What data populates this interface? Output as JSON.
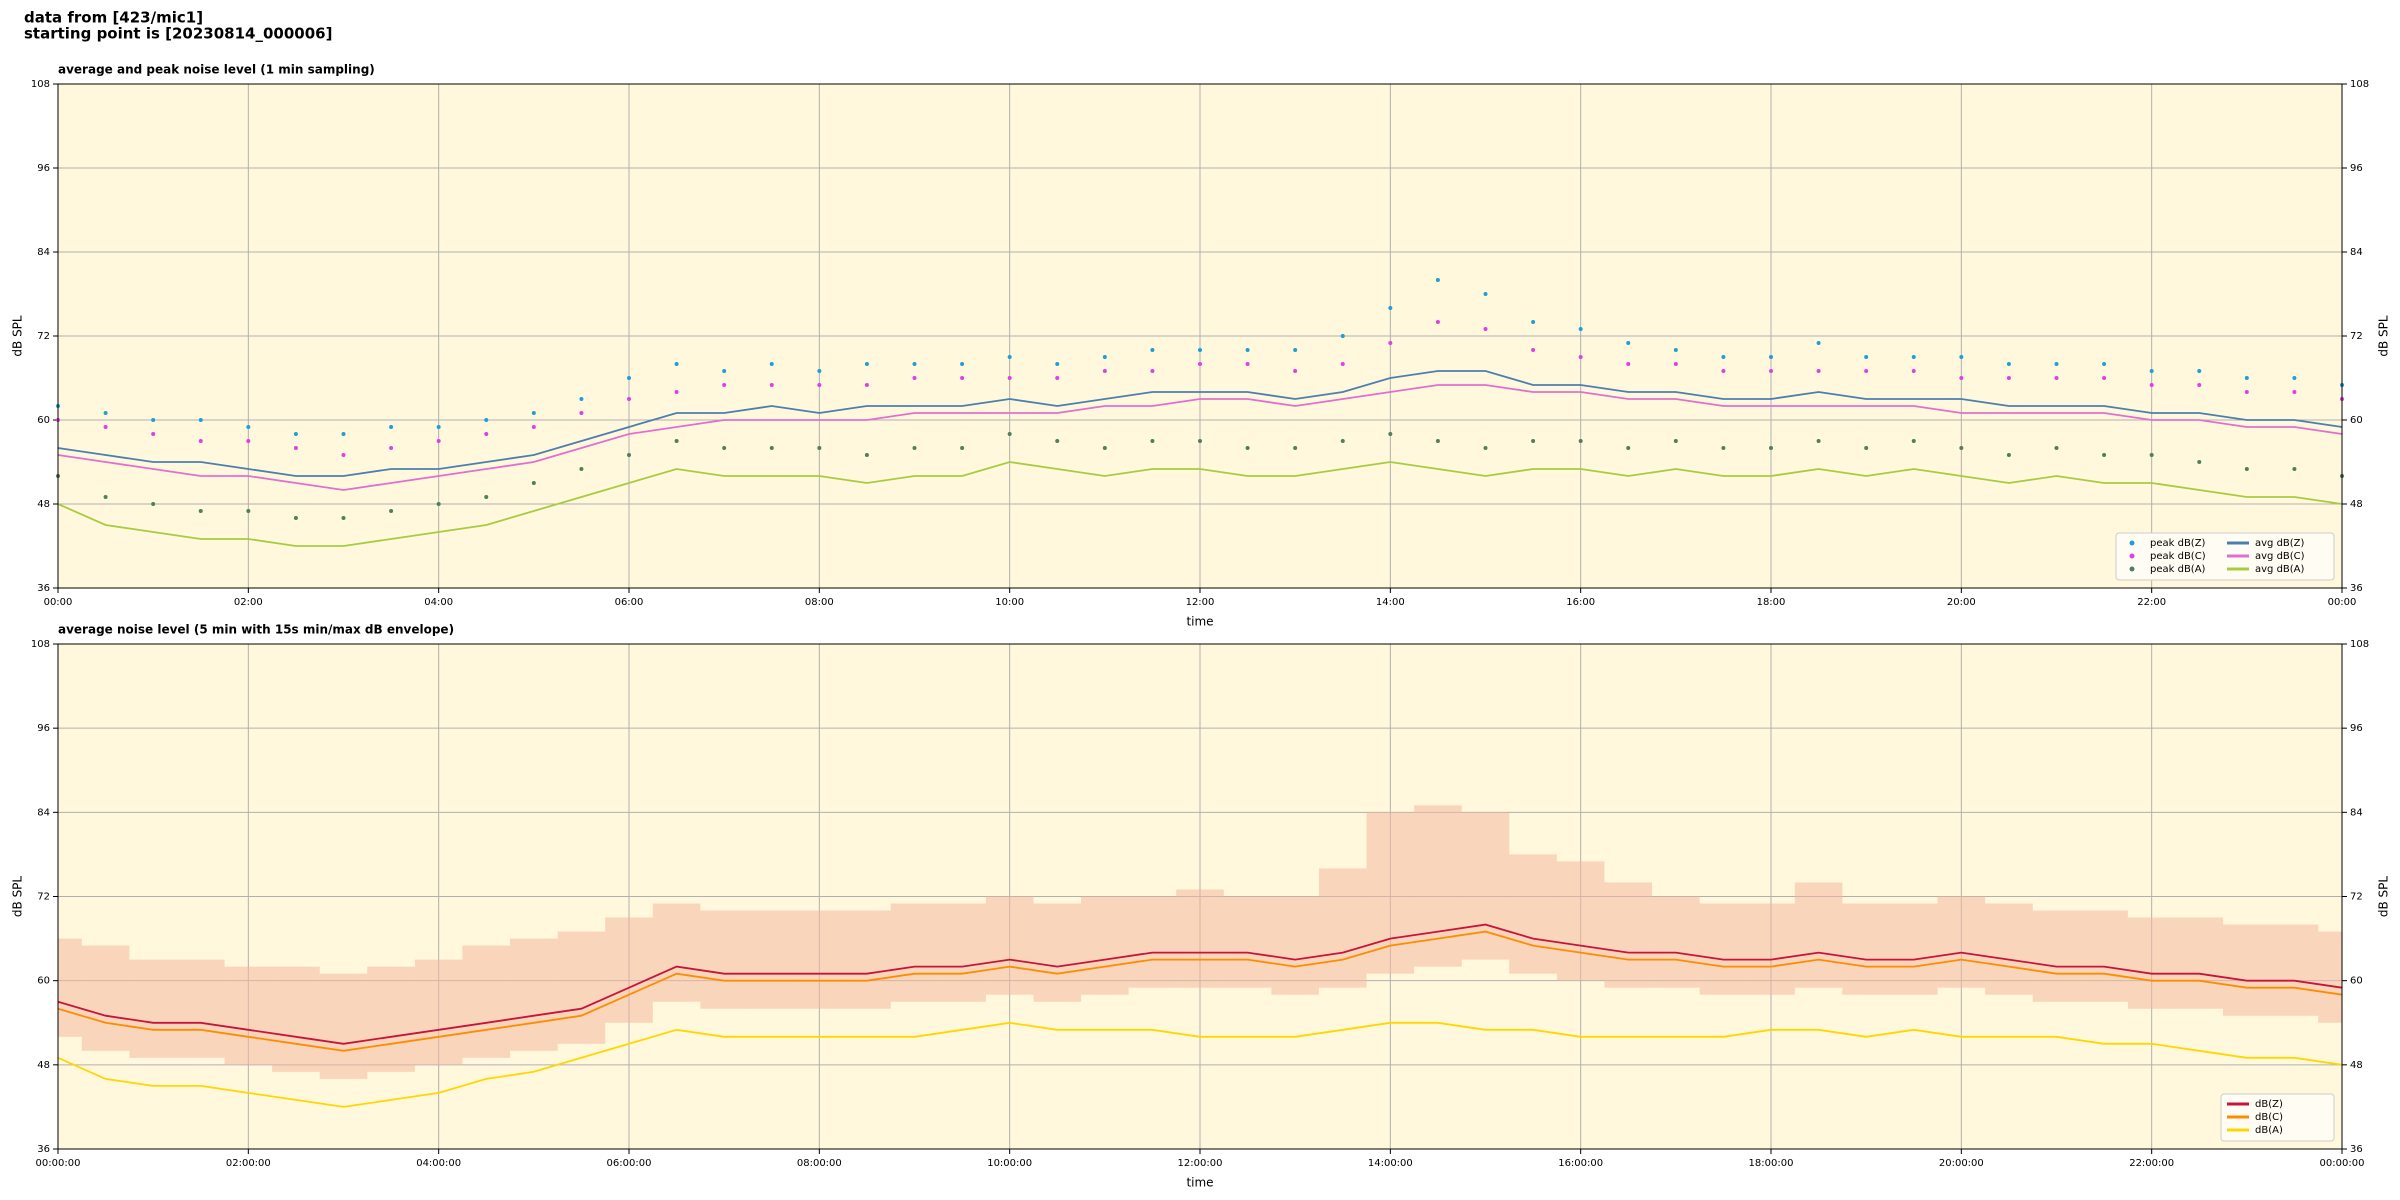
{
  "header": {
    "lines": [
      "data from [423/mic1]",
      "starting point is [20230814_000006]"
    ]
  },
  "chart_data": [
    {
      "type": "line",
      "title": "average and peak noise level (1 min sampling)",
      "xlabel": "time",
      "ylabel": "dB SPL",
      "x": [
        0,
        0.5,
        1,
        1.5,
        2,
        2.5,
        3,
        3.5,
        4,
        4.5,
        5,
        5.5,
        6,
        6.5,
        7,
        7.5,
        8,
        8.5,
        9,
        9.5,
        10,
        10.5,
        11,
        11.5,
        12,
        12.5,
        13,
        13.5,
        14,
        14.5,
        15,
        15.5,
        16,
        16.5,
        17,
        17.5,
        18,
        18.5,
        19,
        19.5,
        20,
        20.5,
        21,
        21.5,
        22,
        22.5,
        23,
        23.5,
        24
      ],
      "xlim": [
        0,
        24
      ],
      "ylim": [
        36,
        108
      ],
      "yticks": [
        36,
        48,
        60,
        72,
        84,
        96,
        108
      ],
      "xticks": [
        {
          "value": 0,
          "label": "00:00"
        },
        {
          "value": 2,
          "label": "02:00"
        },
        {
          "value": 4,
          "label": "04:00"
        },
        {
          "value": 6,
          "label": "06:00"
        },
        {
          "value": 8,
          "label": "08:00"
        },
        {
          "value": 10,
          "label": "10:00"
        },
        {
          "value": 12,
          "label": "12:00"
        },
        {
          "value": 14,
          "label": "14:00"
        },
        {
          "value": 16,
          "label": "16:00"
        },
        {
          "value": 18,
          "label": "18:00"
        },
        {
          "value": 20,
          "label": "20:00"
        },
        {
          "value": 22,
          "label": "22:00"
        },
        {
          "value": 24,
          "label": "00:00"
        }
      ],
      "grid": true,
      "legend": "lower right",
      "legend_columns": 2,
      "series": [
        {
          "name": "peak dB(Z)",
          "style": "dots",
          "color": "#1f9ed8",
          "values": [
            62,
            61,
            60,
            60,
            59,
            58,
            58,
            59,
            59,
            60,
            61,
            63,
            66,
            68,
            67,
            68,
            67,
            68,
            68,
            68,
            69,
            68,
            69,
            70,
            70,
            70,
            70,
            72,
            76,
            80,
            78,
            74,
            73,
            71,
            70,
            69,
            69,
            71,
            69,
            69,
            69,
            68,
            68,
            68,
            67,
            67,
            66,
            66,
            65
          ]
        },
        {
          "name": "peak dB(C)",
          "style": "dots",
          "color": "#e040e0",
          "values": [
            60,
            59,
            58,
            57,
            57,
            56,
            55,
            56,
            57,
            58,
            59,
            61,
            63,
            64,
            65,
            65,
            65,
            65,
            66,
            66,
            66,
            66,
            67,
            67,
            68,
            68,
            67,
            68,
            71,
            74,
            73,
            70,
            69,
            68,
            68,
            67,
            67,
            67,
            67,
            67,
            66,
            66,
            66,
            66,
            65,
            65,
            64,
            64,
            63
          ]
        },
        {
          "name": "peak dB(A)",
          "style": "dots",
          "color": "#4f7f5f",
          "values": [
            52,
            49,
            48,
            47,
            47,
            46,
            46,
            47,
            48,
            49,
            51,
            53,
            55,
            57,
            56,
            56,
            56,
            55,
            56,
            56,
            58,
            57,
            56,
            57,
            57,
            56,
            56,
            57,
            58,
            57,
            56,
            57,
            57,
            56,
            57,
            56,
            56,
            57,
            56,
            57,
            56,
            55,
            56,
            55,
            55,
            54,
            53,
            53,
            52
          ]
        },
        {
          "name": "avg dB(Z)",
          "style": "line",
          "color": "#4a7fb0",
          "values": [
            56,
            55,
            54,
            54,
            53,
            52,
            52,
            53,
            53,
            54,
            55,
            57,
            59,
            61,
            61,
            62,
            61,
            62,
            62,
            62,
            63,
            62,
            63,
            64,
            64,
            64,
            63,
            64,
            66,
            67,
            67,
            65,
            65,
            64,
            64,
            63,
            63,
            64,
            63,
            63,
            63,
            62,
            62,
            62,
            61,
            61,
            60,
            60,
            59
          ]
        },
        {
          "name": "avg dB(C)",
          "style": "line",
          "color": "#e070d0",
          "values": [
            55,
            54,
            53,
            52,
            52,
            51,
            50,
            51,
            52,
            53,
            54,
            56,
            58,
            59,
            60,
            60,
            60,
            60,
            61,
            61,
            61,
            61,
            62,
            62,
            63,
            63,
            62,
            63,
            64,
            65,
            65,
            64,
            64,
            63,
            63,
            62,
            62,
            62,
            62,
            62,
            61,
            61,
            61,
            61,
            60,
            60,
            59,
            59,
            58
          ]
        },
        {
          "name": "avg dB(A)",
          "style": "line",
          "color": "#a8cc40",
          "values": [
            48,
            45,
            44,
            43,
            43,
            42,
            42,
            43,
            44,
            45,
            47,
            49,
            51,
            53,
            52,
            52,
            52,
            51,
            52,
            52,
            54,
            53,
            52,
            53,
            53,
            52,
            52,
            53,
            54,
            53,
            52,
            53,
            53,
            52,
            53,
            52,
            52,
            53,
            52,
            53,
            52,
            51,
            52,
            51,
            51,
            50,
            49,
            49,
            48
          ]
        }
      ]
    },
    {
      "type": "line",
      "title": "average noise level (5 min with 15s min/max dB envelope)",
      "xlabel": "time",
      "ylabel": "dB SPL",
      "x": [
        0,
        0.5,
        1,
        1.5,
        2,
        2.5,
        3,
        3.5,
        4,
        4.5,
        5,
        5.5,
        6,
        6.5,
        7,
        7.5,
        8,
        8.5,
        9,
        9.5,
        10,
        10.5,
        11,
        11.5,
        12,
        12.5,
        13,
        13.5,
        14,
        14.5,
        15,
        15.5,
        16,
        16.5,
        17,
        17.5,
        18,
        18.5,
        19,
        19.5,
        20,
        20.5,
        21,
        21.5,
        22,
        22.5,
        23,
        23.5,
        24
      ],
      "xlim": [
        0,
        24
      ],
      "ylim": [
        36,
        108
      ],
      "yticks": [
        36,
        48,
        60,
        72,
        84,
        96,
        108
      ],
      "xticks": [
        {
          "value": 0,
          "label": "00:00:00"
        },
        {
          "value": 2,
          "label": "02:00:00"
        },
        {
          "value": 4,
          "label": "04:00:00"
        },
        {
          "value": 6,
          "label": "06:00:00"
        },
        {
          "value": 8,
          "label": "08:00:00"
        },
        {
          "value": 10,
          "label": "10:00:00"
        },
        {
          "value": 12,
          "label": "12:00:00"
        },
        {
          "value": 14,
          "label": "14:00:00"
        },
        {
          "value": 16,
          "label": "16:00:00"
        },
        {
          "value": 18,
          "label": "18:00:00"
        },
        {
          "value": 20,
          "label": "20:00:00"
        },
        {
          "value": 22,
          "label": "22:00:00"
        },
        {
          "value": 24,
          "label": "00:00:00"
        }
      ],
      "grid": true,
      "legend": "lower right",
      "legend_columns": 1,
      "envelope": {
        "color": "#f4b8a0",
        "lower": [
          52,
          50,
          49,
          49,
          48,
          47,
          46,
          47,
          48,
          49,
          50,
          51,
          54,
          57,
          56,
          56,
          56,
          56,
          57,
          57,
          58,
          57,
          58,
          59,
          59,
          59,
          58,
          59,
          61,
          62,
          63,
          61,
          60,
          59,
          59,
          58,
          58,
          59,
          58,
          58,
          59,
          58,
          57,
          57,
          56,
          56,
          55,
          55,
          54
        ],
        "upper": [
          66,
          65,
          63,
          63,
          62,
          62,
          61,
          62,
          63,
          65,
          66,
          67,
          69,
          71,
          70,
          70,
          70,
          70,
          71,
          71,
          72,
          71,
          72,
          72,
          73,
          72,
          72,
          76,
          84,
          85,
          84,
          78,
          77,
          74,
          72,
          71,
          71,
          74,
          71,
          71,
          72,
          71,
          70,
          70,
          69,
          69,
          68,
          68,
          67
        ]
      },
      "series": [
        {
          "name": "dB(Z)",
          "style": "line",
          "color": "#c8143c",
          "values": [
            57,
            55,
            54,
            54,
            53,
            52,
            51,
            52,
            53,
            54,
            55,
            56,
            59,
            62,
            61,
            61,
            61,
            61,
            62,
            62,
            63,
            62,
            63,
            64,
            64,
            64,
            63,
            64,
            66,
            67,
            68,
            66,
            65,
            64,
            64,
            63,
            63,
            64,
            63,
            63,
            64,
            63,
            62,
            62,
            61,
            61,
            60,
            60,
            59
          ]
        },
        {
          "name": "dB(C)",
          "style": "line",
          "color": "#ff8c00",
          "values": [
            56,
            54,
            53,
            53,
            52,
            51,
            50,
            51,
            52,
            53,
            54,
            55,
            58,
            61,
            60,
            60,
            60,
            60,
            61,
            61,
            62,
            61,
            62,
            63,
            63,
            63,
            62,
            63,
            65,
            66,
            67,
            65,
            64,
            63,
            63,
            62,
            62,
            63,
            62,
            62,
            63,
            62,
            61,
            61,
            60,
            60,
            59,
            59,
            58
          ]
        },
        {
          "name": "dB(A)",
          "style": "line",
          "color": "#ffd700",
          "values": [
            49,
            46,
            45,
            45,
            44,
            43,
            42,
            43,
            44,
            46,
            47,
            49,
            51,
            53,
            52,
            52,
            52,
            52,
            52,
            53,
            54,
            53,
            53,
            53,
            52,
            52,
            52,
            53,
            54,
            54,
            53,
            53,
            52,
            52,
            52,
            52,
            53,
            53,
            52,
            53,
            52,
            52,
            52,
            51,
            51,
            50,
            49,
            49,
            48
          ]
        }
      ]
    }
  ]
}
